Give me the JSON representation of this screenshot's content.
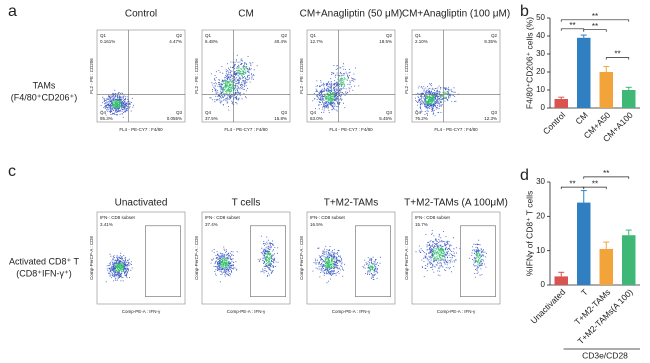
{
  "figure": {
    "panels": [
      "a",
      "b",
      "c",
      "d"
    ],
    "tams": {
      "row_label": [
        "TAMs",
        "(F4/80⁺CD206⁺)"
      ],
      "x_axis": "FL4 - PE-CY7 : F4/80",
      "y_axis": "FL2 - PE : CD206",
      "plots": [
        {
          "title": "Control",
          "quadrants": [
            {
              "name": "Q1",
              "value": "0.161%"
            },
            {
              "name": "Q2",
              "value": "4.47%"
            },
            {
              "name": "Q4",
              "value": "95.3%"
            },
            {
              "name": "Q3",
              "value": "0.055%"
            }
          ]
        },
        {
          "title": "CM",
          "quadrants": [
            {
              "name": "Q1",
              "value": "6.48%"
            },
            {
              "name": "Q2",
              "value": "40.4%"
            },
            {
              "name": "Q4",
              "value": "37.5%"
            },
            {
              "name": "Q3",
              "value": "15.8%"
            }
          ]
        },
        {
          "title": "CM+Anagliptin (50 μM)",
          "quadrants": [
            {
              "name": "Q1",
              "value": "12.7%"
            },
            {
              "name": "Q2",
              "value": "18.5%"
            },
            {
              "name": "Q4",
              "value": "63.0%"
            },
            {
              "name": "Q3",
              "value": "5.45%"
            }
          ]
        },
        {
          "title": "CM+Anagliptin (100 μM)",
          "quadrants": [
            {
              "name": "Q1",
              "value": "2.10%"
            },
            {
              "name": "Q2",
              "value": "9.35%"
            },
            {
              "name": "Q4",
              "value": "76.2%"
            },
            {
              "name": "Q3",
              "value": "12.3%"
            }
          ]
        }
      ]
    },
    "cd8": {
      "row_label": [
        "Activated CD8⁺ T",
        "(CD8⁺IFN-γ⁺)"
      ],
      "x_axis": "Comp-PE-A : IFN-γ",
      "y_axis": "Comp-PerCP-A : CD8",
      "plots": [
        {
          "title": "Unactivated",
          "gate": "IFN-: CD8 subset",
          "value": "3.41%"
        },
        {
          "title": "T cells",
          "gate": "IFN-: CD8 subset",
          "value": "37.4%"
        },
        {
          "title": "T+M2-TAMs",
          "gate": "IFN-: CD8 subset",
          "value": "16.5%"
        },
        {
          "title": "T+M2-TAMs (A 100μM)",
          "gate": "IFN-: CD8 subset",
          "value": "15.7%"
        }
      ]
    }
  },
  "chart_data": [
    {
      "type": "bar",
      "y_label": "F4/80⁺CD206⁺ cells (%)",
      "categories": [
        "Control",
        "CM",
        "CM+A50",
        "CM+A100"
      ],
      "values": [
        5,
        39,
        20,
        10
      ],
      "errors": [
        1,
        1.5,
        3,
        1.5
      ],
      "colors": [
        "#d9534f",
        "#2f7fc1",
        "#f2a33a",
        "#3fb877"
      ],
      "ylim": [
        0,
        50
      ],
      "yticks": [
        0,
        10,
        20,
        30,
        40,
        50
      ],
      "annotations": [
        "**",
        "**",
        "**",
        "**"
      ]
    },
    {
      "type": "bar",
      "y_label": "%IFNγ of CD8⁺ T cells",
      "x_label": "CD3e/CD28",
      "categories": [
        "Unactivated",
        "T",
        "T+M2-TAMs",
        "T+M2-TAMs(A 100)"
      ],
      "values": [
        2.5,
        24,
        10.5,
        14.5
      ],
      "errors": [
        1.2,
        3.5,
        2,
        1.5
      ],
      "colors": [
        "#d9534f",
        "#2f7fc1",
        "#f2a33a",
        "#3fb877"
      ],
      "ylim": [
        0,
        30
      ],
      "yticks": [
        0,
        10,
        20,
        30
      ],
      "annotations": [
        "**",
        "**",
        "**"
      ]
    }
  ]
}
